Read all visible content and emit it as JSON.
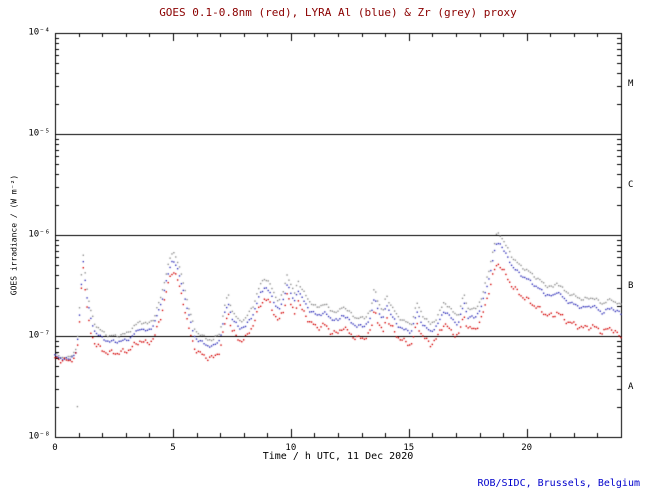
{
  "colors": {
    "title": "#8b0000",
    "axis": "#000000",
    "credit": "#0000cc",
    "red": "#d40000",
    "blue": "#3434bb",
    "grey": "#8f8f8f"
  },
  "chart_data": {
    "type": "scatter",
    "title": "GOES 0.1-0.8nm (red), LYRA Al (blue) & Zr (grey) proxy",
    "xlabel": "Time / h UTC, 11 Dec 2020",
    "ylabel": "GOES irradiance / (W m⁻²)",
    "credit": "ROB/SIDC, Brussels, Belgium",
    "x_range": [
      0,
      24
    ],
    "y_log_range": [
      -8,
      -4
    ],
    "x_major_ticks": [
      0,
      5,
      10,
      15,
      20
    ],
    "y_tick_exponents": [
      -8,
      -7,
      -6,
      -5,
      -4
    ],
    "boundary_lines": [
      1e-07,
      1e-06,
      1e-05
    ],
    "flare_classes": [
      {
        "label": "M",
        "center_exp": -4.5
      },
      {
        "label": "C",
        "center_exp": -5.5
      },
      {
        "label": "B",
        "center_exp": -6.5
      },
      {
        "label": "A",
        "center_exp": -7.5
      }
    ],
    "grid": "boundary-lines-only",
    "legend": "in-title",
    "x": [
      0.0,
      0.3,
      0.6,
      0.9,
      1.0,
      1.1,
      1.2,
      1.35,
      1.5,
      1.7,
      2.0,
      2.3,
      2.6,
      3.0,
      3.3,
      3.6,
      3.9,
      4.2,
      4.5,
      4.7,
      4.85,
      5.0,
      5.15,
      5.3,
      5.5,
      5.7,
      5.9,
      6.1,
      6.4,
      6.7,
      7.0,
      7.2,
      7.35,
      7.5,
      7.8,
      8.1,
      8.4,
      8.7,
      8.9,
      9.1,
      9.3,
      9.5,
      9.7,
      9.85,
      10.0,
      10.15,
      10.3,
      10.5,
      10.8,
      11.1,
      11.4,
      11.7,
      12.0,
      12.2,
      12.5,
      12.8,
      13.1,
      13.4,
      13.55,
      13.7,
      13.9,
      14.05,
      14.2,
      14.5,
      14.8,
      15.1,
      15.35,
      15.6,
      15.9,
      16.2,
      16.5,
      16.8,
      17.1,
      17.35,
      17.5,
      17.8,
      18.1,
      18.4,
      18.6,
      18.75,
      18.9,
      19.1,
      19.4,
      19.7,
      20.0,
      20.4,
      20.8,
      21.1,
      21.3,
      21.6,
      22.0,
      22.4,
      22.8,
      23.2,
      23.6,
      24.0
    ],
    "series": [
      {
        "name": "LYRA Zr proxy",
        "color_key": "grey",
        "jitter": 0.018,
        "values": [
          6.5e-08,
          6.2e-08,
          6e-08,
          7.5e-08,
          1.2e-07,
          3.5e-07,
          6.5e-07,
          3e-07,
          1.8e-07,
          1.3e-07,
          1.1e-07,
          1e-07,
          1e-07,
          1.05e-07,
          1.2e-07,
          1.4e-07,
          1.3e-07,
          1.5e-07,
          2.5e-07,
          4e-07,
          5.5e-07,
          7e-07,
          6e-07,
          4.5e-07,
          3e-07,
          1.8e-07,
          1.2e-07,
          1.05e-07,
          9.5e-08,
          9e-08,
          1.1e-07,
          2e-07,
          2.6e-07,
          1.8e-07,
          1.4e-07,
          1.5e-07,
          2e-07,
          3.2e-07,
          3.8e-07,
          3.3e-07,
          2.6e-07,
          2.2e-07,
          2.8e-07,
          4.2e-07,
          3.2e-07,
          2.6e-07,
          3.6e-07,
          2.8e-07,
          2.2e-07,
          1.9e-07,
          2.1e-07,
          1.8e-07,
          1.7e-07,
          2e-07,
          1.7e-07,
          1.5e-07,
          1.5e-07,
          1.8e-07,
          3.1e-07,
          2.2e-07,
          1.7e-07,
          2.6e-07,
          2.1e-07,
          1.6e-07,
          1.4e-07,
          1.3e-07,
          2.1e-07,
          1.6e-07,
          1.3e-07,
          1.5e-07,
          2.2e-07,
          1.8e-07,
          1.6e-07,
          2.6e-07,
          1.9e-07,
          1.8e-07,
          2.4e-07,
          4.5e-07,
          7.5e-07,
          1.05e-06,
          1e-06,
          8e-07,
          6e-07,
          5e-07,
          4.5e-07,
          3.8e-07,
          3.2e-07,
          3e-07,
          3.4e-07,
          2.8e-07,
          2.5e-07,
          2.3e-07,
          2.4e-07,
          2.1e-07,
          2.3e-07,
          2e-07
        ]
      },
      {
        "name": "LYRA Al proxy",
        "color_key": "blue",
        "jitter": 0.018,
        "values": [
          6.3e-08,
          6e-08,
          5.8e-08,
          7e-08,
          1.05e-07,
          2.9e-07,
          5.5e-07,
          2.5e-07,
          1.5e-07,
          1.1e-07,
          9.5e-08,
          8.8e-08,
          8.8e-08,
          9e-08,
          1e-07,
          1.2e-07,
          1.1e-07,
          1.3e-07,
          2.1e-07,
          3.3e-07,
          4.5e-07,
          5.8e-07,
          5e-07,
          3.7e-07,
          2.5e-07,
          1.5e-07,
          1e-07,
          9e-08,
          8.2e-08,
          7.8e-08,
          9.3e-08,
          1.65e-07,
          2.15e-07,
          1.5e-07,
          1.2e-07,
          1.25e-07,
          1.65e-07,
          2.6e-07,
          3.1e-07,
          2.7e-07,
          2.15e-07,
          1.8e-07,
          2.3e-07,
          3.4e-07,
          2.6e-07,
          2.15e-07,
          2.95e-07,
          2.3e-07,
          1.8e-07,
          1.6e-07,
          1.7e-07,
          1.5e-07,
          1.4e-07,
          1.65e-07,
          1.4e-07,
          1.25e-07,
          1.25e-07,
          1.5e-07,
          2.55e-07,
          1.8e-07,
          1.4e-07,
          2.15e-07,
          1.7e-07,
          1.3e-07,
          1.15e-07,
          1.1e-07,
          1.7e-07,
          1.3e-07,
          1.1e-07,
          1.25e-07,
          1.8e-07,
          1.5e-07,
          1.3e-07,
          2.15e-07,
          1.55e-07,
          1.5e-07,
          2e-07,
          3.7e-07,
          6.2e-07,
          8.5e-07,
          8.2e-07,
          6.5e-07,
          4.9e-07,
          4.1e-07,
          3.7e-07,
          3.1e-07,
          2.6e-07,
          2.45e-07,
          2.8e-07,
          2.3e-07,
          2.05e-07,
          1.9e-07,
          2e-07,
          1.7e-07,
          1.9e-07,
          1.65e-07
        ]
      },
      {
        "name": "GOES 0.1-0.8nm",
        "color_key": "red",
        "jitter": 0.032,
        "values": [
          6e-08,
          5.8e-08,
          5.6e-08,
          6.5e-08,
          9e-08,
          2.6e-07,
          5e-07,
          1.9e-07,
          1.1e-07,
          8.5e-08,
          7.2e-08,
          6.8e-08,
          6.8e-08,
          7e-08,
          7.8e-08,
          9e-08,
          8.4e-08,
          9.5e-08,
          1.6e-07,
          2.6e-07,
          3.6e-07,
          4.6e-07,
          3.9e-07,
          2.9e-07,
          1.9e-07,
          1.1e-07,
          7.8e-08,
          6.8e-08,
          6.2e-08,
          6e-08,
          7.2e-08,
          1.3e-07,
          1.7e-07,
          1.15e-07,
          9e-08,
          9.5e-08,
          1.3e-07,
          2e-07,
          2.4e-07,
          2.1e-07,
          1.65e-07,
          1.4e-07,
          1.8e-07,
          2.7e-07,
          2e-07,
          1.65e-07,
          2.3e-07,
          1.75e-07,
          1.4e-07,
          1.2e-07,
          1.3e-07,
          1.1e-07,
          1.05e-07,
          1.25e-07,
          1.05e-07,
          9.5e-08,
          9.5e-08,
          1.1e-07,
          1.95e-07,
          1.35e-07,
          1.05e-07,
          1.6e-07,
          1.3e-07,
          1e-07,
          8.8e-08,
          8.2e-08,
          1.3e-07,
          1e-07,
          8.2e-08,
          9.5e-08,
          1.35e-07,
          1.1e-07,
          1e-07,
          1.6e-07,
          1.2e-07,
          1.15e-07,
          1.5e-07,
          2.8e-07,
          4.2e-07,
          5.2e-07,
          5e-07,
          4e-07,
          3.1e-07,
          2.6e-07,
          2.3e-07,
          1.95e-07,
          1.65e-07,
          1.55e-07,
          1.75e-07,
          1.45e-07,
          1.3e-07,
          1.2e-07,
          1.25e-07,
          1.1e-07,
          1.2e-07,
          9.5e-08
        ]
      }
    ],
    "outliers": [
      {
        "series": "LYRA Zr proxy",
        "color_key": "grey",
        "x": 0.95,
        "y": 2e-08
      }
    ]
  }
}
